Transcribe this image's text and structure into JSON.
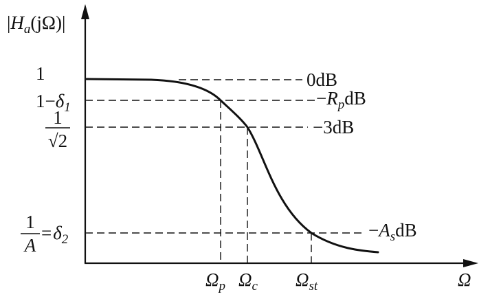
{
  "y_axis_label": {
    "bar_open": "|",
    "H": "H",
    "H_sub": "a",
    "arg": "(jΩ)",
    "bar_close": "|"
  },
  "x_axis_label": "Ω",
  "y_ticks": {
    "one": "1",
    "one_minus_delta": {
      "prefix": "1−",
      "delta": "δ",
      "sub": "1"
    },
    "inv_sqrt2": {
      "num": "1",
      "root": "√2"
    },
    "delta2": {
      "num": "1",
      "den": "A",
      "eq": "=",
      "delta": "δ",
      "sub": "2"
    }
  },
  "db_labels": {
    "zero": "0dB",
    "rp": {
      "minus": "−",
      "R": "R",
      "sub": "p",
      "unit": "dB"
    },
    "three": "−3dB",
    "as": {
      "minus": "−",
      "A": "A",
      "sub": "s",
      "unit": "dB"
    }
  },
  "x_ticks": {
    "p": {
      "omega": "Ω",
      "sub": "p"
    },
    "c": {
      "omega": "Ω",
      "sub": "c"
    },
    "st": {
      "omega": "Ω",
      "sub": "st"
    }
  }
}
